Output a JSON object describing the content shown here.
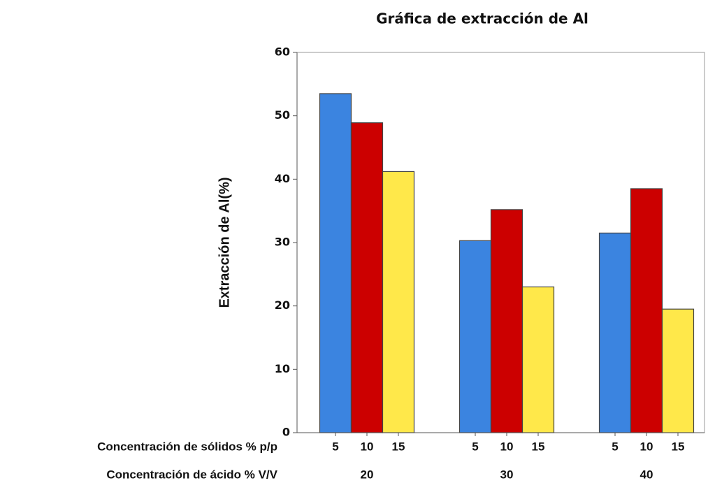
{
  "chart_data": {
    "type": "bar",
    "title": "Gráfica de extracción de Al",
    "ylabel": "Extracción de Al(%)",
    "x_sublabel": "Concentración de sólidos % p/p",
    "xlabel": "Concentración de ácido % V/V",
    "categories": [
      "20",
      "30",
      "40"
    ],
    "series": [
      {
        "name": "5",
        "color": "#3b84e0",
        "values": [
          53.5,
          30.3,
          31.5
        ]
      },
      {
        "name": "10",
        "color": "#cc0000",
        "values": [
          48.9,
          35.2,
          38.5
        ]
      },
      {
        "name": "15",
        "color": "#ffe84a",
        "values": [
          41.2,
          23.0,
          19.5
        ]
      }
    ],
    "ylim": [
      0,
      60
    ],
    "yticks": [
      0,
      10,
      20,
      30,
      40,
      50,
      60
    ],
    "grid": false
  }
}
